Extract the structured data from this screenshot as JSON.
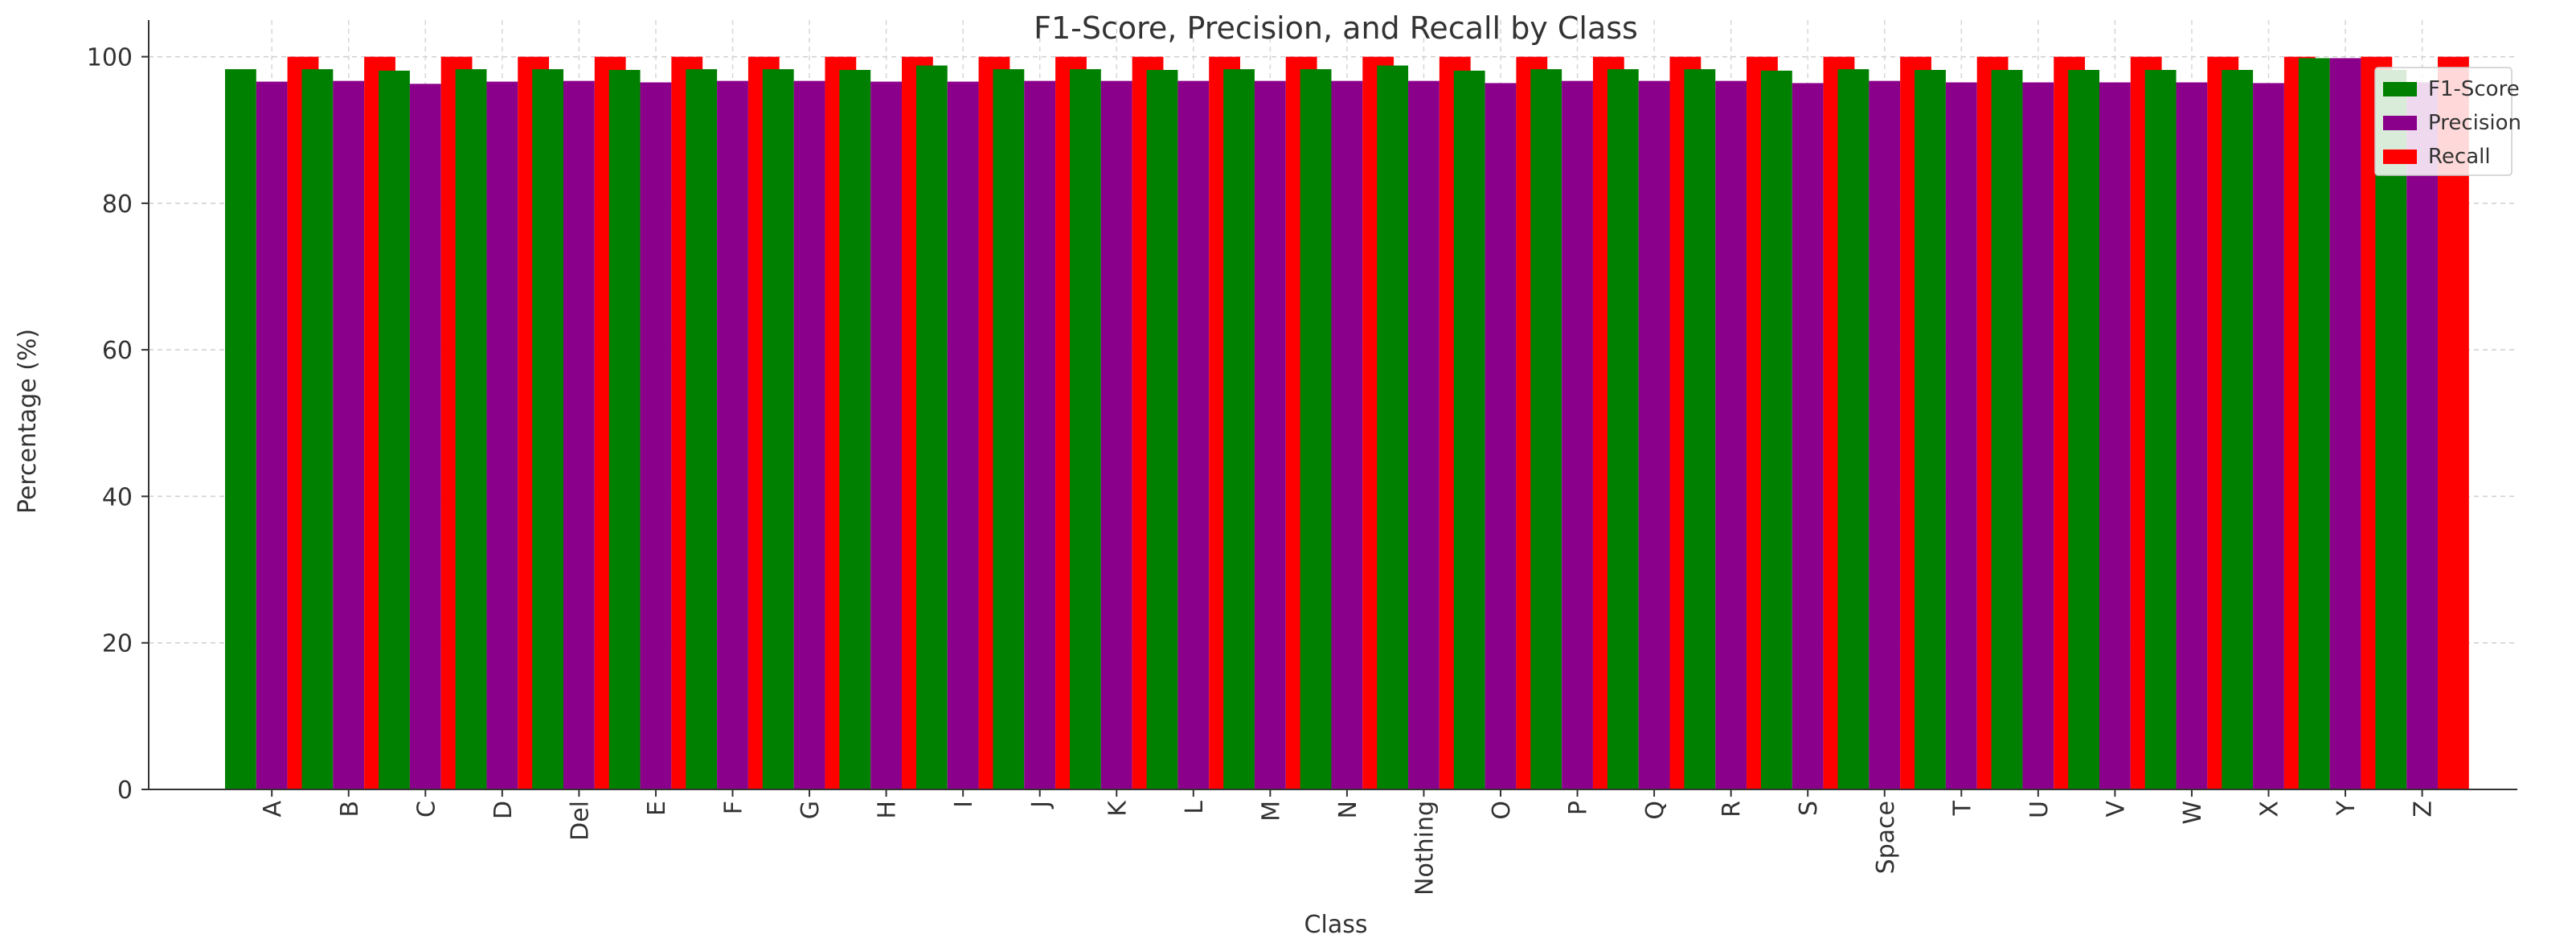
{
  "chart_data": {
    "type": "bar",
    "title": "F1-Score, Precision, and Recall by Class",
    "xlabel": "Class",
    "ylabel": "Percentage (%)",
    "ylim": [
      0,
      105
    ],
    "yticks": [
      0,
      20,
      40,
      60,
      80,
      100
    ],
    "grid": true,
    "legend_position": "top-right",
    "categories": [
      "A",
      "B",
      "C",
      "D",
      "Del",
      "E",
      "F",
      "G",
      "H",
      "I",
      "J",
      "K",
      "L",
      "M",
      "N",
      "Nothing",
      "O",
      "P",
      "Q",
      "R",
      "S",
      "Space",
      "T",
      "U",
      "V",
      "W",
      "X",
      "Y",
      "Z"
    ],
    "series": [
      {
        "name": "F1-Score",
        "color": "#008000",
        "values": [
          98.3,
          98.3,
          98.1,
          98.3,
          98.3,
          98.2,
          98.3,
          98.3,
          98.2,
          98.8,
          98.3,
          98.3,
          98.2,
          98.3,
          98.3,
          98.8,
          98.1,
          98.3,
          98.3,
          98.3,
          98.1,
          98.3,
          98.2,
          98.2,
          98.2,
          98.2,
          98.2,
          99.8,
          98.2
        ]
      },
      {
        "name": "Precision",
        "color": "#8b008b",
        "values": [
          96.6,
          96.7,
          96.3,
          96.6,
          96.7,
          96.5,
          96.7,
          96.7,
          96.6,
          96.6,
          96.7,
          96.7,
          96.7,
          96.7,
          96.7,
          96.7,
          96.4,
          96.7,
          96.7,
          96.7,
          96.4,
          96.7,
          96.5,
          96.5,
          96.5,
          96.5,
          96.4,
          99.8,
          96.5
        ]
      },
      {
        "name": "Recall",
        "color": "#ff0000",
        "values": [
          100,
          100,
          100,
          100,
          100,
          100,
          100,
          100,
          100,
          100,
          100,
          100,
          100,
          100,
          100,
          100,
          100,
          100,
          100,
          100,
          100,
          100,
          100,
          100,
          100,
          100,
          100,
          100,
          100
        ]
      }
    ]
  }
}
